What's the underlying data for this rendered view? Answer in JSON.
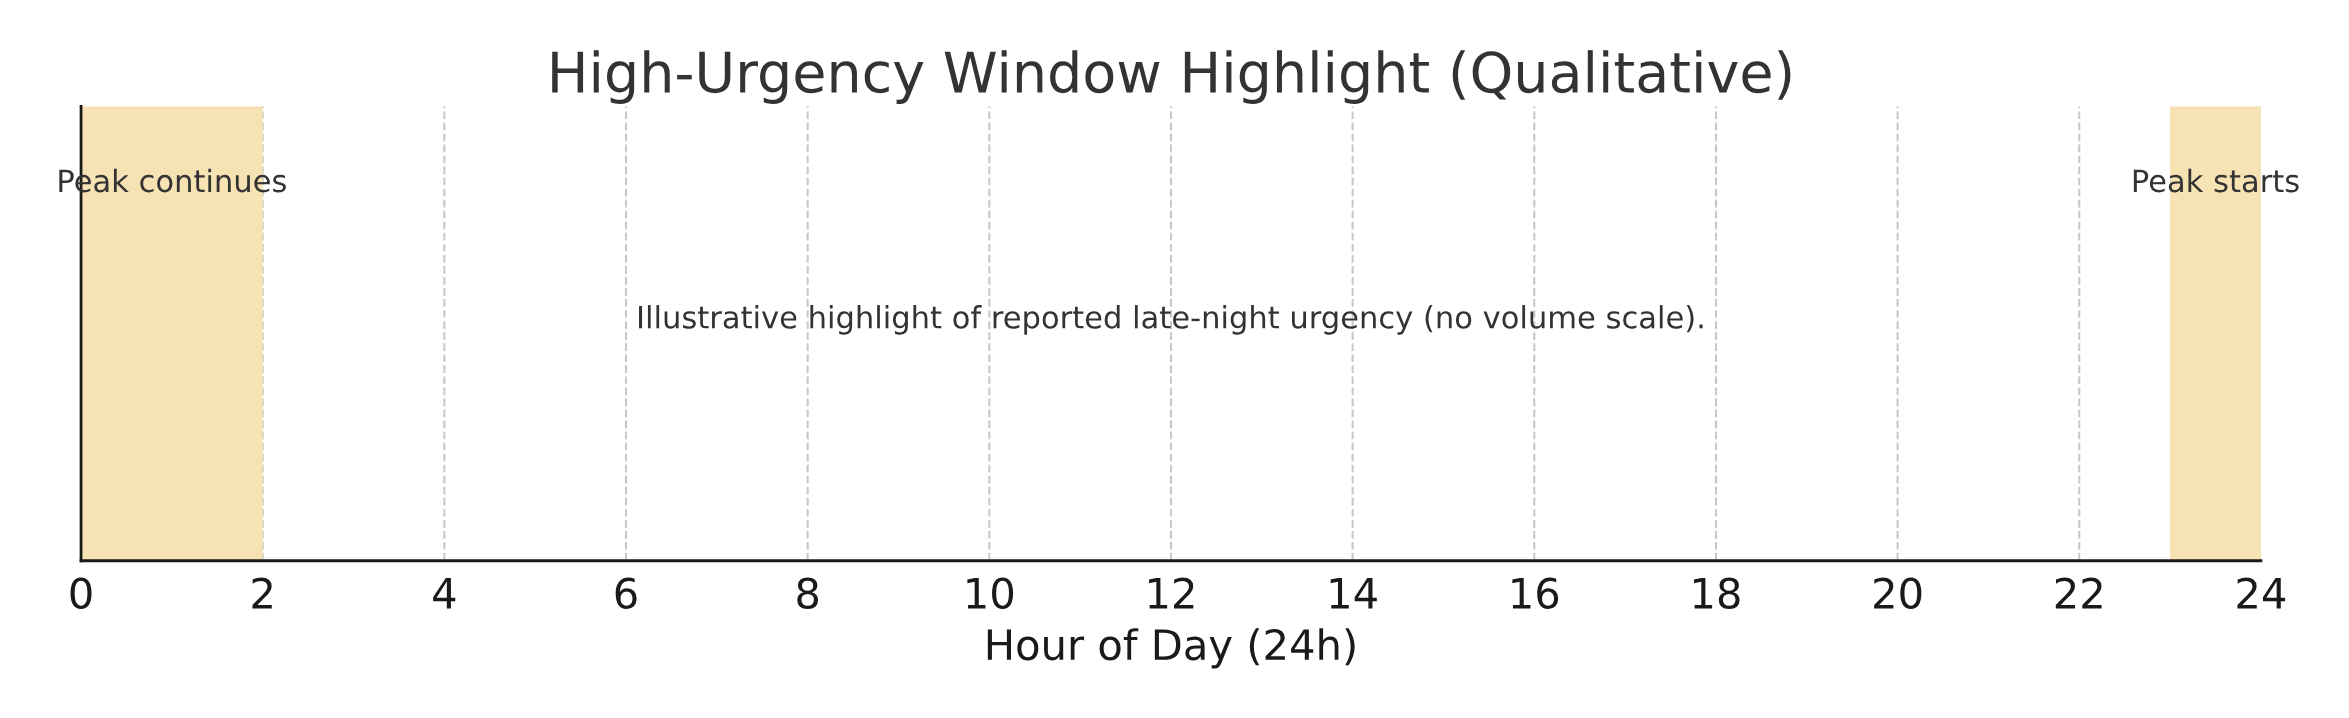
{
  "chart_data": {
    "type": "bar",
    "orientation": "horizontal",
    "title": "High-Urgency Window Highlight (Qualitative)",
    "xlabel": "Hour of Day (24h)",
    "categories": [
      null
    ],
    "series": [
      {
        "name": "Peak continues",
        "color": "#f6e2b3",
        "values": [
          2
        ],
        "base": [
          0
        ]
      },
      {
        "name": "Peak starts",
        "color": "#f6e2b3",
        "values": [
          1
        ],
        "base": [
          23
        ]
      }
    ],
    "xlim": [
      0,
      24
    ],
    "xticks": [
      0,
      2,
      4,
      6,
      8,
      10,
      12,
      14,
      16,
      18,
      20,
      22,
      24
    ],
    "grid": "x",
    "annotations": [
      "Illustrative highlight of reported late-night urgency (no volume scale)."
    ]
  }
}
